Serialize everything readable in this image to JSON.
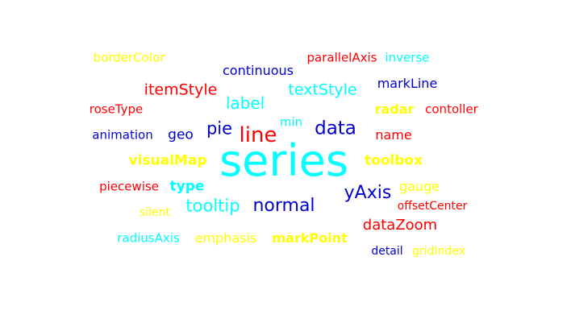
{
  "word_cloud": {
    "colors": {
      "yellow": "#ffff00",
      "red": "#ff0000",
      "cyan": "#00ffff",
      "blue": "#0000cd"
    },
    "words": [
      {
        "text": "borderColor",
        "color": "#ffff00"
      },
      {
        "text": "parallelAxis",
        "color": "#ff0000"
      },
      {
        "text": "inverse",
        "color": "#00ffff"
      },
      {
        "text": "continuous",
        "color": "#0000cd"
      },
      {
        "text": "markLine",
        "color": "#0000cd"
      },
      {
        "text": "itemStyle",
        "color": "#ff0000"
      },
      {
        "text": "textStyle",
        "color": "#00ffff"
      },
      {
        "text": "label",
        "color": "#00ffff"
      },
      {
        "text": "roseType",
        "color": "#ff0000"
      },
      {
        "text": "radar",
        "color": "#ffff00"
      },
      {
        "text": "contoller",
        "color": "#ff0000"
      },
      {
        "text": "min",
        "color": "#00ffff"
      },
      {
        "text": "pie",
        "color": "#0000cd"
      },
      {
        "text": "line",
        "color": "#ff0000"
      },
      {
        "text": "data",
        "color": "#0000cd"
      },
      {
        "text": "animation",
        "color": "#0000cd"
      },
      {
        "text": "geo",
        "color": "#0000cd"
      },
      {
        "text": "name",
        "color": "#ff0000"
      },
      {
        "text": "visualMap",
        "color": "#ffff00"
      },
      {
        "text": "series",
        "color": "#00ffff"
      },
      {
        "text": "toolbox",
        "color": "#ffff00"
      },
      {
        "text": "piecewise",
        "color": "#ff0000"
      },
      {
        "text": "type",
        "color": "#00ffff"
      },
      {
        "text": "yAxis",
        "color": "#0000cd"
      },
      {
        "text": "gauge",
        "color": "#ffff00"
      },
      {
        "text": "tooltip",
        "color": "#00ffff"
      },
      {
        "text": "normal",
        "color": "#0000cd"
      },
      {
        "text": "offsetCenter",
        "color": "#ff0000"
      },
      {
        "text": "silent",
        "color": "#ffff00"
      },
      {
        "text": "dataZoom",
        "color": "#ff0000"
      },
      {
        "text": "radiusAxis",
        "color": "#00ffff"
      },
      {
        "text": "emphasis",
        "color": "#ffff00"
      },
      {
        "text": "markPoint",
        "color": "#ffff00"
      },
      {
        "text": "detail",
        "color": "#0000cd"
      },
      {
        "text": "gridIndex",
        "color": "#ffff00"
      }
    ]
  }
}
